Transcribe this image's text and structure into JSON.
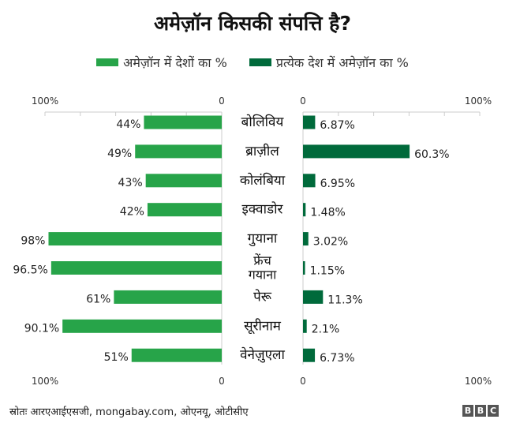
{
  "chart_data": {
    "type": "bar",
    "title": "अमेज़ॉन किसकी संपत्ति है?",
    "legend": [
      "अमेज़ॉन में देशों का %",
      "प्रत्येक देश में अमेज़ॉन का %"
    ],
    "colors": [
      "#27a449",
      "#006a3b"
    ],
    "categories": [
      "बोलिविय",
      "ब्राज़ील",
      "कोलंबिया",
      "इक्वाडोर",
      "गुयाना",
      "फ्रेंच गयाना",
      "पेरू",
      "सूरीनाम",
      "वेनेज़ुएला"
    ],
    "series": [
      {
        "name": "अमेज़ॉन में देशों का %",
        "values": [
          44,
          49,
          43,
          42,
          98,
          96.5,
          61,
          90.1,
          51
        ],
        "labels": [
          "44%",
          "49%",
          "43%",
          "42%",
          "98%",
          "96.5%",
          "61%",
          "90.1%",
          "51%"
        ]
      },
      {
        "name": "प्रत्येक देश में अमेज़ॉन का %",
        "values": [
          6.87,
          60.3,
          6.95,
          1.48,
          3.02,
          1.15,
          11.3,
          2.1,
          6.73
        ],
        "labels": [
          "6.87%",
          "60.3%",
          "6.95%",
          "1.48%",
          "3.02%",
          "1.15%",
          "11.3%",
          "2.1%",
          "6.73%"
        ]
      }
    ],
    "xlim": [
      0,
      100
    ],
    "axis_labels": {
      "max": "100%",
      "zero": "0"
    }
  },
  "source": "स्रोतः आरएआईएसजी, mongabay.com, ओएनयू, ओटीसीए",
  "logo": "BBC"
}
